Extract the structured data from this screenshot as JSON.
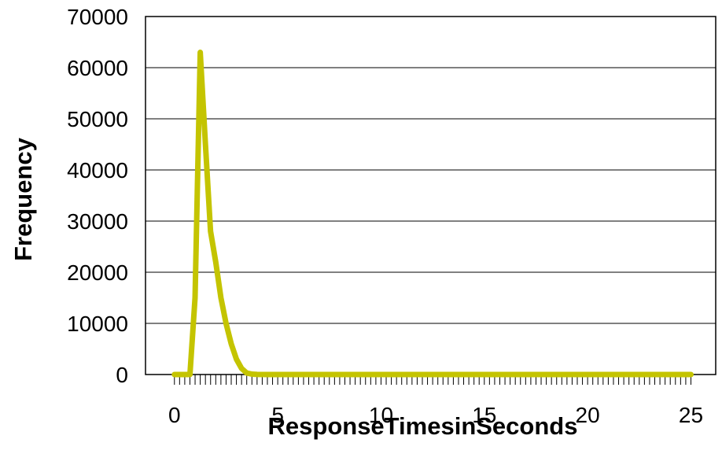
{
  "chart_data": {
    "type": "line",
    "title": "",
    "xlabel": "ResponseTimesinSeconds",
    "ylabel": "Frequency",
    "xlim": [
      -1.4,
      26.2
    ],
    "ylim": [
      0,
      70000
    ],
    "x_ticks": [
      0,
      5,
      10,
      15,
      20,
      25
    ],
    "y_ticks": [
      0,
      10000,
      20000,
      30000,
      40000,
      50000,
      60000,
      70000
    ],
    "x_tick_labels": [
      "0",
      "5",
      "10",
      "15",
      "20",
      "25"
    ],
    "y_tick_labels": [
      "0",
      "10000",
      "20000",
      "30000",
      "40000",
      "50000",
      "60000",
      "70000"
    ],
    "minor_tick_step": 0.25,
    "grid": "horizontal",
    "line_color": "#c4c400",
    "series": [
      {
        "x": [
          0,
          0.25,
          0.5,
          0.75,
          1.0,
          1.25,
          1.5,
          1.75,
          2.0,
          2.25,
          2.5,
          2.75,
          3.0,
          3.25,
          3.5,
          3.75,
          4.0,
          4.5,
          5,
          6,
          8,
          10,
          12,
          14,
          16,
          18,
          20,
          22,
          24,
          25
        ],
        "values": [
          0,
          0,
          0,
          0,
          15000,
          63000,
          45000,
          28000,
          22000,
          15000,
          10000,
          6000,
          3000,
          1200,
          300,
          80,
          10,
          0,
          0,
          0,
          0,
          0,
          0,
          0,
          0,
          0,
          0,
          0,
          0,
          0
        ]
      }
    ]
  }
}
